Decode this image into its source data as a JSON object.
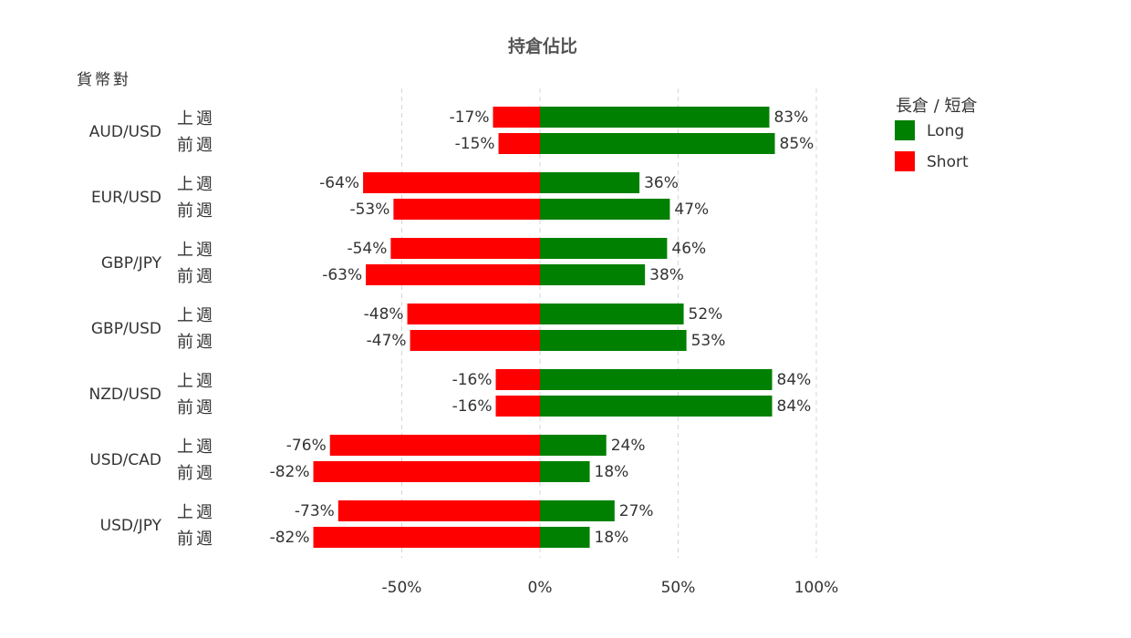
{
  "chart_data": {
    "type": "bar",
    "orientation": "horizontal-diverging",
    "title": "持倉佔比",
    "y_group_label": "貨幣對",
    "legend_title": "長倉 / 短倉",
    "legend_position": "right",
    "grid": true,
    "xlim": [
      -100,
      100
    ],
    "x_ticks": [
      {
        "value": -50,
        "label": "-50%"
      },
      {
        "value": 0,
        "label": "0%"
      },
      {
        "value": 50,
        "label": "50%"
      },
      {
        "value": 100,
        "label": "100%"
      }
    ],
    "periods": [
      "上週",
      "前週"
    ],
    "series": [
      {
        "name": "Long",
        "color": "#008000"
      },
      {
        "name": "Short",
        "color": "#ff0000"
      }
    ],
    "groups": [
      {
        "pair": "AUD/USD",
        "rows": [
          {
            "period": "上週",
            "long": 83,
            "short": -17,
            "long_label": "83%",
            "short_label": "-17%"
          },
          {
            "period": "前週",
            "long": 85,
            "short": -15,
            "long_label": "85%",
            "short_label": "-15%"
          }
        ]
      },
      {
        "pair": "EUR/USD",
        "rows": [
          {
            "period": "上週",
            "long": 36,
            "short": -64,
            "long_label": "36%",
            "short_label": "-64%"
          },
          {
            "period": "前週",
            "long": 47,
            "short": -53,
            "long_label": "47%",
            "short_label": "-53%"
          }
        ]
      },
      {
        "pair": "GBP/JPY",
        "rows": [
          {
            "period": "上週",
            "long": 46,
            "short": -54,
            "long_label": "46%",
            "short_label": "-54%"
          },
          {
            "period": "前週",
            "long": 38,
            "short": -63,
            "long_label": "38%",
            "short_label": "-63%"
          }
        ]
      },
      {
        "pair": "GBP/USD",
        "rows": [
          {
            "period": "上週",
            "long": 52,
            "short": -48,
            "long_label": "52%",
            "short_label": "-48%"
          },
          {
            "period": "前週",
            "long": 53,
            "short": -47,
            "long_label": "53%",
            "short_label": "-47%"
          }
        ]
      },
      {
        "pair": "NZD/USD",
        "rows": [
          {
            "period": "上週",
            "long": 84,
            "short": -16,
            "long_label": "84%",
            "short_label": "-16%"
          },
          {
            "period": "前週",
            "long": 84,
            "short": -16,
            "long_label": "84%",
            "short_label": "-16%"
          }
        ]
      },
      {
        "pair": "USD/CAD",
        "rows": [
          {
            "period": "上週",
            "long": 24,
            "short": -76,
            "long_label": "24%",
            "short_label": "-76%"
          },
          {
            "period": "前週",
            "long": 18,
            "short": -82,
            "long_label": "18%",
            "short_label": "-82%"
          }
        ]
      },
      {
        "pair": "USD/JPY",
        "rows": [
          {
            "period": "上週",
            "long": 27,
            "short": -73,
            "long_label": "27%",
            "short_label": "-73%"
          },
          {
            "period": "前週",
            "long": 18,
            "short": -82,
            "long_label": "18%",
            "short_label": "-82%"
          }
        ]
      }
    ]
  }
}
